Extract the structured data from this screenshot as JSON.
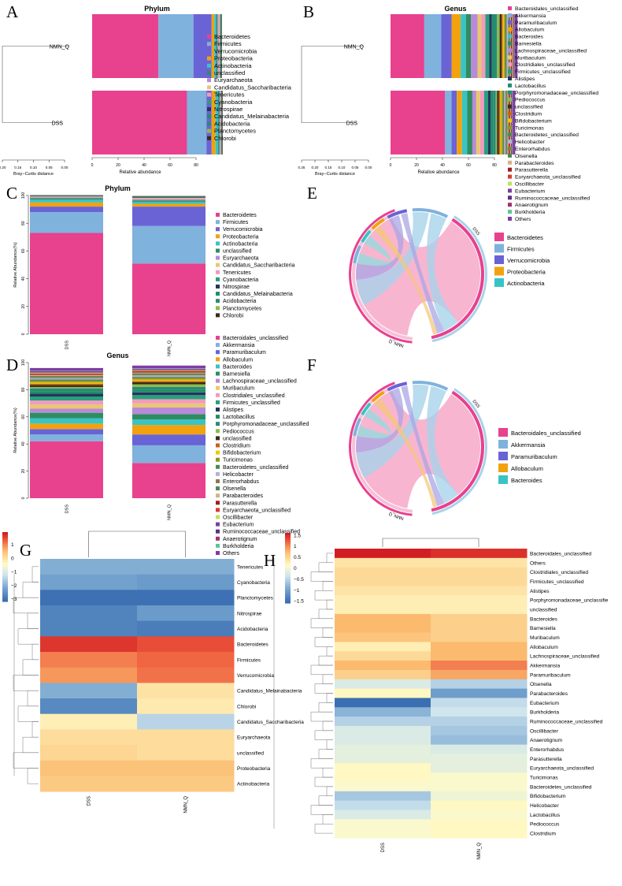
{
  "panel_letters": [
    "A",
    "B",
    "C",
    "D",
    "E",
    "F",
    "G",
    "H"
  ],
  "phylum_taxa": [
    "Bacteroidetes",
    "Firmicutes",
    "Verrucomicrobia",
    "Proteobacteria",
    "Actinobacteria",
    "unclassified",
    "Euryarchaeota",
    "Candidatus_Saccharibacteria",
    "Tenericutes",
    "Cyanobacteria",
    "Nitrospirae",
    "Candidatus_Melainabacteria",
    "Acidobacteria",
    "Planctomycetes",
    "Chlorobi"
  ],
  "genus_taxa": [
    "Bacteroidales_unclassified",
    "Akkermansia",
    "Paramuribaculum",
    "Allobaculum",
    "Bacteroides",
    "Barnesiella",
    "Lachnospiraceae_unclassified",
    "Muribaculum",
    "Clostridiales_unclassified",
    "Firmicutes_unclassified",
    "Alistipes",
    "Lactobacillus",
    "Porphyromonadaceae_unclassified",
    "Pediococcus",
    "unclassified",
    "Clostridium",
    "Bifidobacterium",
    "Turicimonas",
    "Bacteroidetes_unclassified",
    "Helicobacter",
    "Enterorhabdus",
    "Olsenella",
    "Parabacteroides",
    "Parasutterella",
    "Euryarchaeota_unclassified",
    "Oscillibacter",
    "Eubacterium",
    "Ruminococcaceae_unclassified",
    "Anaerotignum",
    "Burkholderia",
    "Others"
  ],
  "genus_legend_C_text": [
    "Bacteroidales_unclassified",
    "Akkermansia",
    "Paramuribaculum",
    "Allobaculum",
    "Bacteroides",
    "Barnesiella",
    "Lachnospiraceae_unclassified",
    "Muribaculum",
    "Clostridiales_unclassified",
    "Firmicutes_unclassified",
    "Alistipes",
    "Lactobacillus",
    "Porphyromonadaceae_unclassified",
    "Pediococcus",
    "unclassified",
    "Clostridium",
    "Bifidobacterium",
    "Turicimonas",
    "Bacteroidetes_unclassified",
    "Helicobacter",
    "Enterorhabdus",
    "Olsenella",
    "Parabacteroides",
    "Parasutterella",
    "Euryarchaeota_unclassified",
    "Oscillibacter",
    "Eubacterium",
    "Ruminococcaceae_unclassified",
    "Anaerotignum",
    "Burkholderia",
    "Others"
  ],
  "phylum_legend_C_text": [
    "Bacteroidetes",
    "Firmicutes",
    "Verrucomicrobia",
    "Proteobacteria",
    "Actinobacteria",
    "unclassified",
    "Euryarchaeota",
    "Candidatus_Saccharibacteria",
    "Tenericutes",
    "Cyanobacteria",
    "Nitrospirae",
    "Candidatus_Melainabacteria",
    "Acidobacteria",
    "Planctomycetes",
    "Chlorobi"
  ],
  "chart_data": [
    {
      "panel": "A",
      "type": "bar",
      "orientation": "horizontal",
      "stacked": true,
      "title": "Phylum",
      "xlabel": "Relative abundance",
      "x_ticks": [
        "0",
        "20",
        "40",
        "60",
        "80"
      ],
      "xlim": [
        0,
        100
      ],
      "categories": [
        "NMN_Q",
        "DSS"
      ],
      "dendrogram_label": "Bray−Curtis distance",
      "dendrogram_ticks": [
        "0.20",
        "0.15",
        "0.10",
        "0.05",
        "0.00"
      ],
      "series": [
        {
          "name": "Bacteroidetes",
          "values": [
            51,
            73
          ]
        },
        {
          "name": "Firmicutes",
          "values": [
            27,
            15
          ]
        },
        {
          "name": "Verrucomicrobia",
          "values": [
            14,
            4
          ]
        },
        {
          "name": "Proteobacteria",
          "values": [
            2,
            3
          ]
        },
        {
          "name": "Actinobacteria",
          "values": [
            1.5,
            2
          ]
        },
        {
          "name": "unclassified",
          "values": [
            1,
            1
          ]
        },
        {
          "name": "Euryarchaeota",
          "values": [
            1,
            0.8
          ]
        },
        {
          "name": "Candidatus_Saccharibacteria",
          "values": [
            0.5,
            0.3
          ]
        },
        {
          "name": "Tenericutes",
          "values": [
            0.4,
            0.3
          ]
        },
        {
          "name": "Cyanobacteria",
          "values": [
            0.3,
            0.2
          ]
        },
        {
          "name": "Nitrospirae",
          "values": [
            0.2,
            0.2
          ]
        },
        {
          "name": "Candidatus_Melainabacteria",
          "values": [
            0.4,
            0.1
          ]
        },
        {
          "name": "Acidobacteria",
          "values": [
            0.1,
            0.1
          ]
        },
        {
          "name": "Planctomycetes",
          "values": [
            0.1,
            0.1
          ]
        },
        {
          "name": "Chlorobi",
          "values": [
            0.1,
            0.1
          ]
        }
      ]
    },
    {
      "panel": "B",
      "type": "bar",
      "orientation": "horizontal",
      "stacked": true,
      "title": "Genus",
      "xlabel": "Relative abundance",
      "x_ticks": [
        "0",
        "20",
        "40",
        "60",
        "80"
      ],
      "xlim": [
        0,
        100
      ],
      "categories": [
        "NMN_Q",
        "DSS"
      ],
      "dendrogram_label": "Bray−Curtis distance",
      "dendrogram_ticks": [
        "0.25",
        "0.20",
        "0.15",
        "0.10",
        "0.05",
        "0.00"
      ],
      "series": [
        {
          "name": "Bacteroidales_unclassified",
          "values": [
            26,
            42
          ]
        },
        {
          "name": "Akkermansia",
          "values": [
            13,
            5
          ]
        },
        {
          "name": "Paramuribaculum",
          "values": [
            8,
            4
          ]
        },
        {
          "name": "Allobaculum",
          "values": [
            7,
            4
          ]
        },
        {
          "name": "Bacteroides",
          "values": [
            4,
            4
          ]
        },
        {
          "name": "Barnesiella",
          "values": [
            4,
            4
          ]
        },
        {
          "name": "Lachnospiraceae_unclassified",
          "values": [
            5,
            3
          ]
        },
        {
          "name": "Muribaculum",
          "values": [
            3,
            3
          ]
        },
        {
          "name": "Clostridiales_unclassified",
          "values": [
            3,
            3
          ]
        },
        {
          "name": "Firmicutes_unclassified",
          "values": [
            3,
            3
          ]
        },
        {
          "name": "Alistipes",
          "values": [
            2,
            2
          ]
        },
        {
          "name": "Lactobacillus",
          "values": [
            2,
            2
          ]
        },
        {
          "name": "Porphyromonadaceae_unclassified",
          "values": [
            2,
            2
          ]
        },
        {
          "name": "Pediococcus",
          "values": [
            2,
            1
          ]
        },
        {
          "name": "unclassified",
          "values": [
            1.5,
            1.5
          ]
        },
        {
          "name": "Clostridium",
          "values": [
            1,
            1
          ]
        },
        {
          "name": "Bifidobacterium",
          "values": [
            1,
            1
          ]
        },
        {
          "name": "Turicimonas",
          "values": [
            1,
            1
          ]
        },
        {
          "name": "Bacteroidetes_unclassified",
          "values": [
            1,
            1
          ]
        },
        {
          "name": "Helicobacter",
          "values": [
            1,
            1
          ]
        },
        {
          "name": "Enterorhabdus",
          "values": [
            0.8,
            0.8
          ]
        },
        {
          "name": "Olsenella",
          "values": [
            0.8,
            0.8
          ]
        },
        {
          "name": "Parabacteroides",
          "values": [
            0.6,
            0.8
          ]
        },
        {
          "name": "Parasutterella",
          "values": [
            0.6,
            0.6
          ]
        },
        {
          "name": "Euryarchaeota_unclassified",
          "values": [
            0.6,
            0.6
          ]
        },
        {
          "name": "Oscillibacter",
          "values": [
            0.5,
            0.5
          ]
        },
        {
          "name": "Eubacterium",
          "values": [
            0.4,
            0.4
          ]
        },
        {
          "name": "Ruminococcaceae_unclassified",
          "values": [
            0.4,
            0.4
          ]
        },
        {
          "name": "Anaerotignum",
          "values": [
            0.3,
            0.3
          ]
        },
        {
          "name": "Burkholderia",
          "values": [
            0.3,
            0.3
          ]
        },
        {
          "name": "Others",
          "values": [
            2,
            2
          ]
        }
      ]
    },
    {
      "panel": "C",
      "type": "bar",
      "orientation": "vertical",
      "stacked": true,
      "title": "Phylum",
      "ylabel": "Relative Abundance(%)",
      "y_ticks": [
        "0",
        "20",
        "40",
        "60",
        "80",
        "100"
      ],
      "ylim": [
        0,
        100
      ],
      "categories": [
        "DSS",
        "NMN_Q"
      ],
      "series_ref": "A"
    },
    {
      "panel": "D",
      "type": "bar",
      "orientation": "vertical",
      "stacked": true,
      "title": "Genus",
      "ylabel": "Relative Abundance(%)",
      "y_ticks": [
        "0",
        "20",
        "40",
        "60",
        "80",
        "100"
      ],
      "ylim": [
        0,
        100
      ],
      "categories": [
        "DSS",
        "NMN_Q"
      ],
      "series_ref": "B"
    },
    {
      "panel": "E",
      "type": "chord",
      "sectors": [
        "DSS",
        "NMN_Q"
      ],
      "legend": [
        "Bacteroidetes",
        "Firmicutes",
        "Verrucomicrobia",
        "Proteobacteria",
        "Actinobacteria"
      ]
    },
    {
      "panel": "F",
      "type": "chord",
      "sectors": [
        "DSS",
        "NMN_Q"
      ],
      "legend": [
        "Bacteroidales_unclassified",
        "Akkermansia",
        "Paramuribaculum",
        "Allobaculum",
        "Bacteroides"
      ]
    },
    {
      "panel": "G",
      "type": "heatmap",
      "columns": [
        "DSS",
        "NMN_Q"
      ],
      "color_scale_ticks": [
        "1",
        "0",
        "−1",
        "−2",
        "−3"
      ],
      "vrange": [
        -3.2,
        1.9
      ],
      "rows": [
        "Tenericutes",
        "Cyanobacteria",
        "Planctomycetes",
        "Nitrospirae",
        "Acidobacteria",
        "Bacteroidetes",
        "Firmicutes",
        "Verrucomicrobia",
        "Candidatus_Melainabacteria",
        "Chlorobi",
        "Candidatus_Saccharibacteria",
        "Euryarchaeota",
        "unclassified",
        "Proteobacteria",
        "Actinobacteria"
      ],
      "values": [
        [
          -2.0,
          -2.0
        ],
        [
          -2.2,
          -2.3
        ],
        [
          -3.0,
          -3.0
        ],
        [
          -2.7,
          -2.3
        ],
        [
          -2.7,
          -2.8
        ],
        [
          1.7,
          1.5
        ],
        [
          1.1,
          1.3
        ],
        [
          0.9,
          1.2
        ],
        [
          -2.0,
          0.0
        ],
        [
          -2.6,
          -0.1
        ],
        [
          -0.2,
          -1.4
        ],
        [
          0.1,
          0.1
        ],
        [
          0.2,
          0.1
        ],
        [
          0.5,
          0.5
        ],
        [
          0.4,
          0.4
        ]
      ]
    },
    {
      "panel": "H",
      "type": "heatmap",
      "columns": [
        "DSS",
        "NMN_Q"
      ],
      "color_scale_ticks": [
        "1.5",
        "1",
        "0.5",
        "0",
        "−0.5",
        "−1",
        "−1.5"
      ],
      "vrange": [
        -1.6,
        1.6
      ],
      "rows": [
        "Bacteroidales_unclassified",
        "Others",
        "Clostridiales_unclassified",
        "Firmicutes_unclassified",
        "Alistipes",
        "Porphyromonadaceae_unclassifie",
        "unclassified",
        "Bacteroides",
        "Barnesiella",
        "Muribaculum",
        "Allobaculum",
        "Lachnospiraceae_unclassified",
        "Akkermansia",
        "Paramuribaculum",
        "Olsenella",
        "Parabacteroides",
        "Eubacterium",
        "Burkholderia",
        "Ruminococcaceae_unclassified",
        "Oscillibacter",
        "Anaerotignum",
        "Enterorhabdus",
        "Parasutterella",
        "Euryarchaeota_unclassified",
        "Turicimonas",
        "Bacteroidetes_unclassified",
        "Bifidobacterium",
        "Helicobacter",
        "Lactobacillus",
        "Pediococcus",
        "Clostridium"
      ],
      "values": [
        [
          1.6,
          1.5
        ],
        [
          0.4,
          0.4
        ],
        [
          0.5,
          0.5
        ],
        [
          0.5,
          0.5
        ],
        [
          0.4,
          0.4
        ],
        [
          0.3,
          0.3
        ],
        [
          0.3,
          0.3
        ],
        [
          0.8,
          0.6
        ],
        [
          0.8,
          0.6
        ],
        [
          0.7,
          0.6
        ],
        [
          0.3,
          0.8
        ],
        [
          0.5,
          0.8
        ],
        [
          0.8,
          1.1
        ],
        [
          0.6,
          0.9
        ],
        [
          -0.2,
          -0.5
        ],
        [
          0.2,
          -1.0
        ],
        [
          -1.5,
          -0.4
        ],
        [
          -0.8,
          -0.3
        ],
        [
          -0.5,
          -0.5
        ],
        [
          -0.2,
          -0.6
        ],
        [
          -0.2,
          -0.7
        ],
        [
          -0.1,
          -0.2
        ],
        [
          -0.1,
          -0.1
        ],
        [
          0.2,
          -0.1
        ],
        [
          0.2,
          0.1
        ],
        [
          0.1,
          0.1
        ],
        [
          -0.6,
          0.0
        ],
        [
          -0.4,
          0.2
        ],
        [
          -0.2,
          0.1
        ],
        [
          0.1,
          0.2
        ],
        [
          0.1,
          0.2
        ]
      ]
    }
  ]
}
